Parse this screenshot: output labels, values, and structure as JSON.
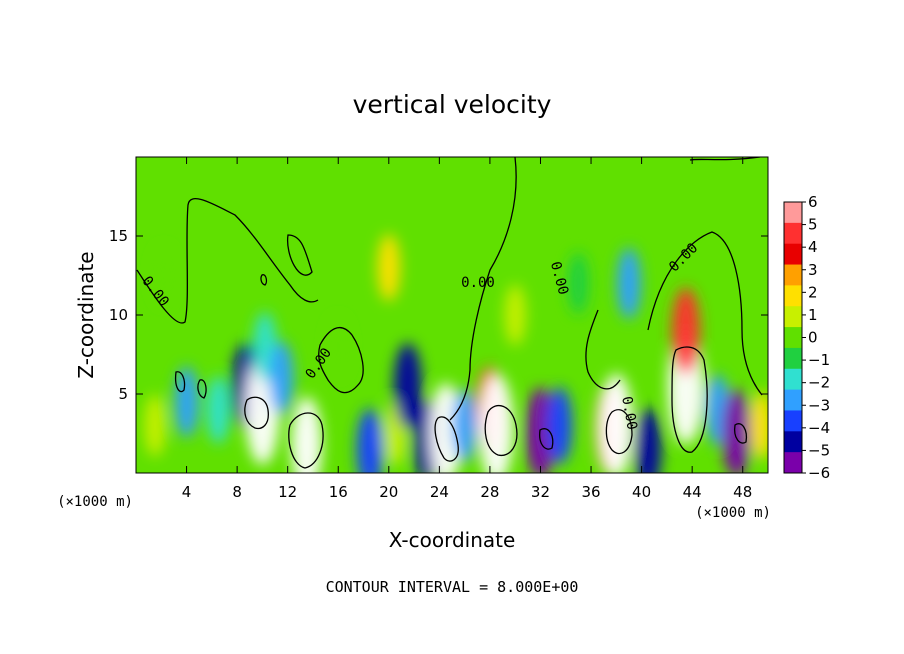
{
  "chart_data": {
    "type": "heatmap",
    "title": "vertical velocity",
    "xlabel": "X-coordinate",
    "ylabel": "Z-coordinate",
    "x_unit": "(×1000 m)",
    "xlim": [
      0,
      50
    ],
    "ylim": [
      0,
      20
    ],
    "x_ticks": [
      4,
      8,
      12,
      16,
      20,
      24,
      28,
      32,
      36,
      40,
      44,
      48
    ],
    "y_ticks": [
      5,
      10,
      15
    ],
    "colorbar": {
      "ticks": [
        6,
        5,
        4,
        3,
        2,
        1,
        0,
        -1,
        -2,
        -3,
        -4,
        -5,
        -6
      ],
      "colors": [
        "#ff9a9a",
        "#ff3030",
        "#e80000",
        "#ffa000",
        "#ffe000",
        "#c8f000",
        "#60e000",
        "#20d040",
        "#30e0d0",
        "#30a0ff",
        "#1840ff",
        "#0000a0",
        "#7a00aa"
      ],
      "min": -6,
      "max": 6
    },
    "contour_labels": [
      "0.00",
      "0.00",
      "0.00",
      "0.00",
      "0.00",
      "0.00"
    ],
    "contour_interval_text": "CONTOUR INTERVAL = 8.000E+00",
    "cells": [
      {
        "x": 1.5,
        "z": 3.0,
        "w": 1.0
      },
      {
        "x": 2.2,
        "z": 12.5,
        "w": -0.3
      },
      {
        "x": 4.0,
        "z": 4.5,
        "w": -2.5
      },
      {
        "x": 6.5,
        "z": 4.0,
        "w": -2.0
      },
      {
        "x": 8.7,
        "z": 5.5,
        "w": -5.0
      },
      {
        "x": 10.0,
        "z": 4.0,
        "w": 9.0
      },
      {
        "x": 10.2,
        "z": 8.0,
        "w": -2.2
      },
      {
        "x": 11.5,
        "z": 6.0,
        "w": -3.0
      },
      {
        "x": 13.5,
        "z": 1.8,
        "w": 6.5
      },
      {
        "x": 16.0,
        "z": 8.0,
        "w": 0.5
      },
      {
        "x": 18.5,
        "z": 1.5,
        "w": -4.2
      },
      {
        "x": 20.0,
        "z": 13.0,
        "w": 1.8
      },
      {
        "x": 20.5,
        "z": 2.5,
        "w": 1.5
      },
      {
        "x": 21.5,
        "z": 5.5,
        "w": -5.0
      },
      {
        "x": 23.0,
        "z": 2.0,
        "w": -4.5
      },
      {
        "x": 24.5,
        "z": 2.5,
        "w": 7.5
      },
      {
        "x": 26.0,
        "z": 3.0,
        "w": -3.0
      },
      {
        "x": 28.0,
        "z": 4.0,
        "w": 5.0
      },
      {
        "x": 28.5,
        "z": 2.8,
        "w": 9.0
      },
      {
        "x": 30.0,
        "z": 10.0,
        "w": 0.8
      },
      {
        "x": 32.0,
        "z": 2.5,
        "w": -6.0
      },
      {
        "x": 33.5,
        "z": 3.0,
        "w": -3.5
      },
      {
        "x": 35.0,
        "z": 12.0,
        "w": -1.0
      },
      {
        "x": 37.5,
        "z": 2.8,
        "w": 6.0
      },
      {
        "x": 38.0,
        "z": 3.0,
        "w": 8.0
      },
      {
        "x": 39.0,
        "z": 12.0,
        "w": -2.5
      },
      {
        "x": 40.5,
        "z": 1.5,
        "w": -4.5
      },
      {
        "x": 43.5,
        "z": 5.5,
        "w": 10.0
      },
      {
        "x": 43.5,
        "z": 9.0,
        "w": 5.0
      },
      {
        "x": 46.0,
        "z": 4.0,
        "w": -2.5
      },
      {
        "x": 47.5,
        "z": 2.5,
        "w": -5.5
      },
      {
        "x": 49.5,
        "z": 3.0,
        "w": 2.0
      }
    ]
  }
}
